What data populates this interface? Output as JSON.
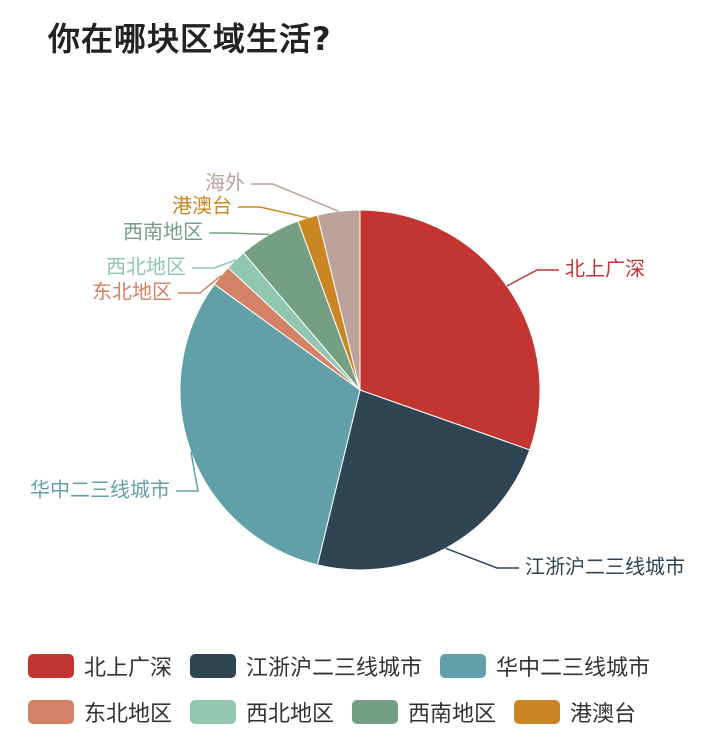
{
  "chart_data": {
    "type": "pie",
    "title": "你在哪块区域生活?",
    "slices": [
      {
        "label": "北上广深",
        "value": 30.4,
        "color": "#C23531"
      },
      {
        "label": "江浙沪二三线城市",
        "value": 23.4,
        "color": "#2F4554"
      },
      {
        "label": "华中二三线城市",
        "value": 31.2,
        "color": "#61A0A8"
      },
      {
        "label": "东北地区",
        "value": 1.9,
        "color": "#D48265"
      },
      {
        "label": "西北地区",
        "value": 1.9,
        "color": "#91C7AE"
      },
      {
        "label": "西南地区",
        "value": 5.6,
        "color": "#749F83"
      },
      {
        "label": "港澳台",
        "value": 1.8,
        "color": "#CA8622"
      },
      {
        "label": "海外",
        "value": 3.8,
        "color": "#BDA29A"
      }
    ],
    "legend": {
      "placement": "bottom",
      "rows": [
        [
          "北上广深",
          "江浙沪二三线城市",
          "华中二三线城市"
        ],
        [
          "东北地区",
          "西北地区",
          "西南地区",
          "港澳台"
        ]
      ]
    }
  }
}
